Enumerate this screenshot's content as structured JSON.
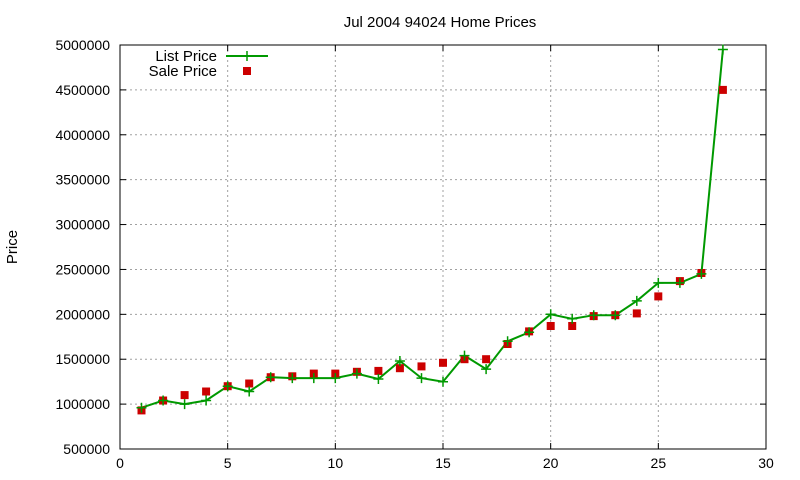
{
  "chart_data": {
    "type": "line",
    "title": "Jul 2004 94024 Home Prices",
    "xlabel": "",
    "ylabel": "Price",
    "xlim": [
      0,
      30
    ],
    "ylim": [
      500000,
      5000000
    ],
    "xticks": [
      0,
      5,
      10,
      15,
      20,
      25,
      30
    ],
    "yticks": [
      500000,
      1000000,
      1500000,
      2000000,
      2500000,
      3000000,
      3500000,
      4000000,
      4500000,
      5000000
    ],
    "grid": true,
    "legend": "top-left",
    "series": [
      {
        "name": "List Price",
        "style": "lines+points",
        "color": "#009900",
        "marker": "plus",
        "x": [
          1,
          2,
          3,
          4,
          5,
          6,
          7,
          8,
          9,
          10,
          11,
          12,
          13,
          14,
          15,
          16,
          17,
          18,
          19,
          20,
          21,
          22,
          23,
          24,
          25,
          26,
          27,
          28
        ],
        "y": [
          960000,
          1040000,
          1000000,
          1040000,
          1200000,
          1140000,
          1300000,
          1290000,
          1290000,
          1290000,
          1340000,
          1280000,
          1480000,
          1290000,
          1250000,
          1540000,
          1390000,
          1700000,
          1800000,
          2000000,
          1950000,
          1990000,
          1990000,
          2150000,
          2350000,
          2350000,
          2450000,
          4950000
        ]
      },
      {
        "name": "Sale Price",
        "style": "points",
        "color": "#cc0000",
        "marker": "square",
        "x": [
          1,
          2,
          3,
          4,
          5,
          6,
          7,
          8,
          9,
          10,
          11,
          12,
          13,
          14,
          15,
          16,
          17,
          18,
          19,
          20,
          21,
          22,
          23,
          24,
          25,
          26,
          27,
          28
        ],
        "y": [
          930000,
          1040000,
          1100000,
          1140000,
          1200000,
          1230000,
          1300000,
          1310000,
          1340000,
          1340000,
          1360000,
          1370000,
          1400000,
          1420000,
          1460000,
          1500000,
          1500000,
          1670000,
          1810000,
          1870000,
          1870000,
          1980000,
          1990000,
          2010000,
          2200000,
          2370000,
          2460000,
          4500000
        ]
      }
    ]
  }
}
